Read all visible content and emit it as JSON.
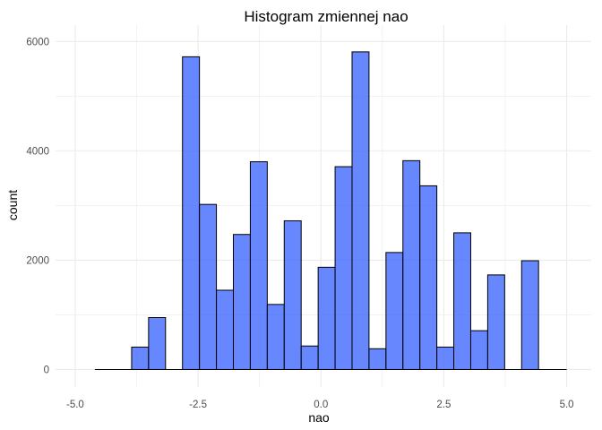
{
  "chart_data": {
    "type": "bar",
    "title": "Histogram zmiennej  nao",
    "xlabel": "nao",
    "ylabel": "count",
    "xlim": [
      -5.4,
      5.5
    ],
    "ylim": [
      -320,
      6300
    ],
    "bin_width": 0.345,
    "bin_start": -3.852,
    "x_ticks": [
      -5.0,
      -2.5,
      0.0,
      2.5,
      5.0
    ],
    "x_tick_labels": [
      "-5.0",
      "-2.5",
      "0.0",
      "2.5",
      "5.0"
    ],
    "y_ticks": [
      0,
      2000,
      4000,
      6000
    ],
    "y_tick_labels": [
      "0",
      "2000",
      "4000",
      "6000"
    ],
    "baseline_range": [
      -4.6,
      5.0
    ],
    "values": [
      410,
      950,
      0,
      5720,
      3020,
      1450,
      2470,
      3800,
      1190,
      2720,
      430,
      1870,
      3710,
      5810,
      380,
      2140,
      3820,
      3360,
      410,
      2500,
      710,
      1730,
      0,
      1990
    ],
    "grid": true,
    "fill_color": "#4169ff",
    "fill_opacity": 0.8,
    "edge_color": "#000000",
    "grid_color": "#ebebeb"
  }
}
